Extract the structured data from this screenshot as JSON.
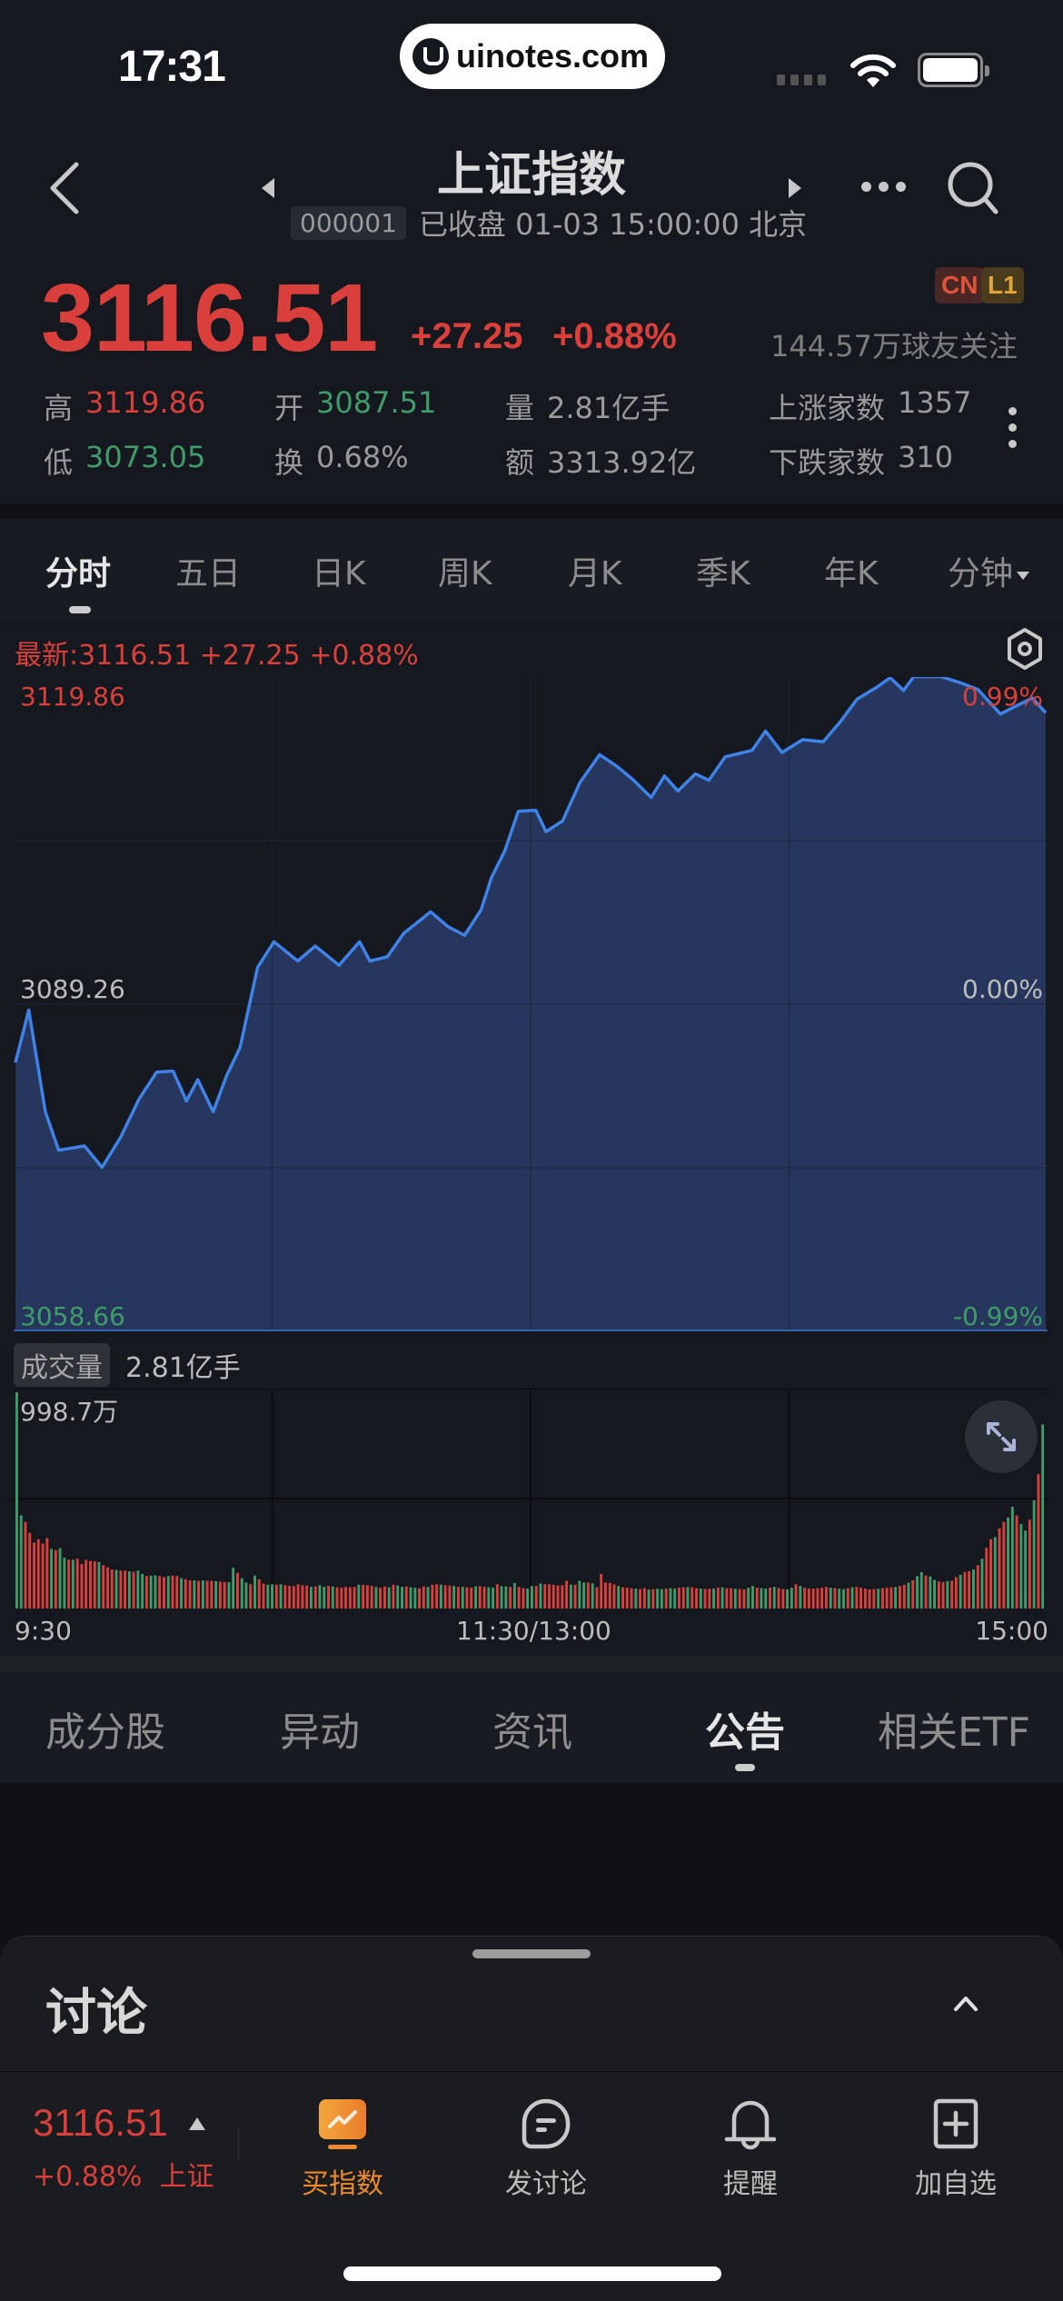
{
  "status_bar": {
    "time": "17:31",
    "watermark": "uinotes.com"
  },
  "header": {
    "title": "上证指数",
    "code": "000001",
    "status_text": "已收盘 01-03 15:00:00 北京",
    "icons": {
      "back": "chevron-left-icon",
      "prev": "triangle-left-icon",
      "next": "triangle-right-icon",
      "more": "more-horizontal-icon",
      "search": "search-icon"
    }
  },
  "quote": {
    "price": "3116.51",
    "change": "+27.25",
    "change_pct": "+0.88%",
    "badges": [
      "CN",
      "L1"
    ],
    "followers": "144.57万球友关注",
    "stats": [
      {
        "label": "高",
        "value": "3119.86",
        "tone": "red"
      },
      {
        "label": "开",
        "value": "3087.51",
        "tone": "green"
      },
      {
        "label": "量",
        "value": "2.81亿手",
        "tone": "neutral"
      },
      {
        "label": "上涨家数",
        "value": "1357",
        "tone": "neutral"
      },
      {
        "label": "低",
        "value": "3073.05",
        "tone": "green"
      },
      {
        "label": "换",
        "value": "0.68%",
        "tone": "neutral"
      },
      {
        "label": "额",
        "value": "3313.92亿",
        "tone": "neutral"
      },
      {
        "label": "下跌家数",
        "value": "310",
        "tone": "neutral"
      }
    ]
  },
  "period_tabs": {
    "items": [
      "分时",
      "五日",
      "日K",
      "周K",
      "月K",
      "季K",
      "年K",
      "分钟"
    ],
    "active": 0
  },
  "chart_header": {
    "latest": "最新:3116.51  +27.25  +0.88%"
  },
  "chart_labels": {
    "y_top": "3119.86",
    "y_mid": "3089.26",
    "y_bottom": "3058.66",
    "pct_top": "0.99%",
    "pct_mid": "0.00%",
    "pct_bottom": "-0.99%",
    "volume_title": "成交量",
    "volume_total": "2.81亿手",
    "volume_max": "998.7万",
    "time_start": "9:30",
    "time_mid": "11:30/13:00",
    "time_end": "15:00"
  },
  "colors": {
    "up": "#d9403c",
    "down": "#3f9c6a",
    "line": "#3f82e8",
    "fill": "#273860",
    "accent": "#ec8a30"
  },
  "chart_data": [
    {
      "type": "area",
      "title": "上证指数 分时",
      "xlabel": "time",
      "ylabel": "index",
      "ylim": [
        3058.66,
        3119.86
      ],
      "reference": 3089.26,
      "x_ticks": [
        "9:30",
        "11:30/13:00",
        "15:00"
      ],
      "y_ticks": [
        "3119.86",
        "3089.26",
        "3058.66"
      ],
      "right_ticks": [
        "0.99%",
        "0.00%",
        "-0.99%"
      ],
      "grid": true,
      "x": [
        0,
        0.013,
        0.029,
        0.042,
        0.067,
        0.084,
        0.102,
        0.12,
        0.137,
        0.153,
        0.166,
        0.177,
        0.192,
        0.205,
        0.218,
        0.235,
        0.251,
        0.274,
        0.291,
        0.314,
        0.334,
        0.344,
        0.361,
        0.377,
        0.403,
        0.42,
        0.436,
        0.452,
        0.462,
        0.475,
        0.488,
        0.505,
        0.515,
        0.531,
        0.548,
        0.567,
        0.584,
        0.6,
        0.617,
        0.63,
        0.643,
        0.66,
        0.673,
        0.689,
        0.715,
        0.728,
        0.744,
        0.764,
        0.784,
        0.8,
        0.817,
        0.836,
        0.849,
        0.862,
        0.872,
        0.898,
        0.918,
        0.934,
        0.956,
        0.97,
        0.987,
        1.0
      ],
      "values": [
        3083.8,
        3088.7,
        3079.2,
        3075.6,
        3076.0,
        3074.0,
        3076.8,
        3080.4,
        3082.9,
        3083.0,
        3080.2,
        3082.2,
        3079.2,
        3082.6,
        3085.2,
        3092.7,
        3095.1,
        3093.3,
        3094.7,
        3092.9,
        3095.1,
        3093.3,
        3093.7,
        3095.9,
        3097.9,
        3096.5,
        3095.7,
        3098.1,
        3101.1,
        3103.6,
        3107.3,
        3107.4,
        3105.4,
        3106.4,
        3110.0,
        3112.6,
        3111.5,
        3110.2,
        3108.6,
        3110.6,
        3109.2,
        3110.8,
        3110.2,
        3112.4,
        3113.0,
        3114.8,
        3112.8,
        3114.0,
        3113.8,
        3115.6,
        3117.8,
        3118.9,
        3119.8,
        3118.6,
        3119.9,
        3119.9,
        3119.3,
        3118.7,
        3116.4,
        3117.1,
        3117.9,
        3116.51
      ]
    },
    {
      "type": "bar",
      "title": "成交量",
      "ylabel": "volume (万手)",
      "ylim": [
        0,
        998.7
      ],
      "max_label": "998.7万",
      "values": [
        998.7,
        430,
        400,
        350,
        305,
        320,
        300,
        325,
        275,
        270,
        278,
        235,
        225,
        225,
        230,
        205,
        225,
        220,
        218,
        215,
        200,
        190,
        180,
        178,
        175,
        175,
        172,
        170,
        175,
        160,
        150,
        152,
        153,
        150,
        145,
        150,
        152,
        150,
        140,
        135,
        130,
        130,
        128,
        130,
        128,
        128,
        126,
        124,
        122,
        122,
        188,
        165,
        140,
        120,
        112,
        152,
        135,
        115,
        110,
        112,
        110,
        112,
        108,
        105,
        104,
        112,
        108,
        106,
        100,
        102,
        108,
        100,
        105,
        102,
        98,
        96,
        100,
        98,
        100,
        110,
        110,
        108,
        104,
        100,
        96,
        102,
        98,
        110,
        106,
        100,
        102,
        98,
        96,
        94,
        102,
        100,
        110,
        112,
        110,
        108,
        106,
        104,
        100,
        100,
        98,
        96,
        102,
        104,
        100,
        98,
        96,
        112,
        104,
        102,
        100,
        118,
        100,
        94,
        92,
        104,
        104,
        116,
        112,
        112,
        110,
        106,
        108,
        128,
        110,
        110,
        128,
        120,
        120,
        116,
        98,
        160,
        120,
        118,
        112,
        104,
        98,
        96,
        94,
        92,
        90,
        94,
        88,
        90,
        92,
        90,
        92,
        94,
        92,
        96,
        98,
        100,
        98,
        94,
        92,
        90,
        92,
        92,
        96,
        98,
        94,
        94,
        92,
        90,
        88,
        96,
        104,
        96,
        94,
        92,
        96,
        100,
        94,
        90,
        88,
        96,
        112,
        104,
        96,
        92,
        92,
        94,
        96,
        100,
        96,
        94,
        92,
        90,
        94,
        98,
        100,
        96,
        92,
        88,
        90,
        92,
        94,
        96,
        98,
        100,
        104,
        110,
        120,
        130,
        150,
        168,
        152,
        148,
        132,
        125,
        121,
        127,
        128,
        145,
        156,
        169,
        172,
        180,
        200,
        230,
        280,
        320,
        330,
        370,
        400,
        420,
        470,
        430,
        390,
        360,
        410,
        500,
        620,
        850
      ],
      "colors_pattern": "mixed red (up) / green (down)"
    }
  ],
  "section_tabs": {
    "items": [
      "成分股",
      "异动",
      "资讯",
      "公告",
      "相关ETF"
    ],
    "active": 3
  },
  "discussion": {
    "title": "讨论"
  },
  "bottom_bar": {
    "price": "3116.51",
    "change_pct": "+0.88%",
    "index_name": "上证",
    "actions": [
      {
        "label": "买指数",
        "icon": "buy-index-icon"
      },
      {
        "label": "发讨论",
        "icon": "chat-bubble-icon"
      },
      {
        "label": "提醒",
        "icon": "bell-icon"
      },
      {
        "label": "加自选",
        "icon": "add-square-icon"
      }
    ]
  }
}
